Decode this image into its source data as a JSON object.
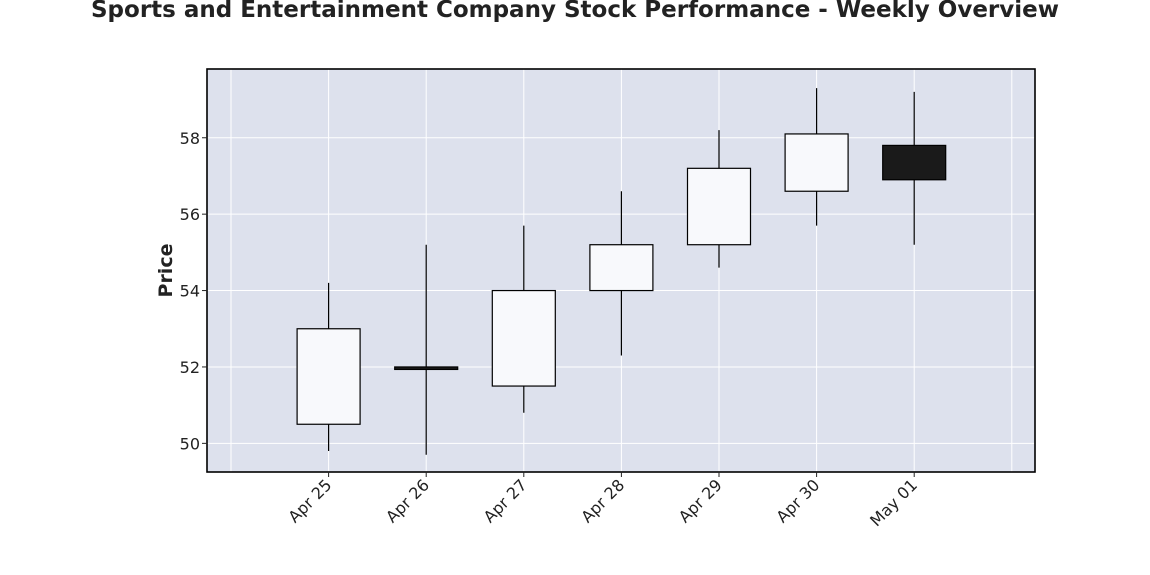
{
  "chart_data": {
    "type": "candlestick",
    "title": "Sports and Entertainment Company Stock Performance - Weekly Overview",
    "xlabel": "",
    "ylabel": "Price",
    "categories": [
      "Apr 25",
      "Apr 26",
      "Apr 27",
      "Apr 28",
      "Apr 29",
      "Apr 30",
      "May 01"
    ],
    "open": [
      50.5,
      52.0,
      51.5,
      54.0,
      55.2,
      56.6,
      57.8
    ],
    "high": [
      54.2,
      55.2,
      55.7,
      56.6,
      58.2,
      59.3,
      59.2
    ],
    "low": [
      49.8,
      49.7,
      50.8,
      52.3,
      54.6,
      55.7,
      55.2
    ],
    "close": [
      53.0,
      51.95,
      54.0,
      55.2,
      57.2,
      58.1,
      56.9
    ],
    "ylim": [
      49.25,
      59.8
    ],
    "yticks": [
      50,
      52,
      54,
      56,
      58
    ],
    "grid": true,
    "colors": {
      "up": "#f8f9fc",
      "down": "#1a1a1a",
      "plot_background": "#dde1ed",
      "grid": "#ffffff",
      "edge": "#000000"
    }
  }
}
